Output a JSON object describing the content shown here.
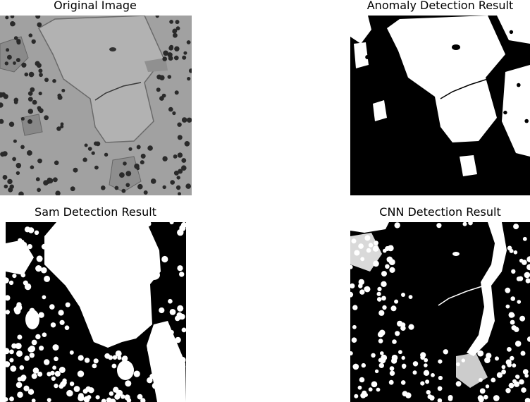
{
  "panels": [
    {
      "title": "Original Image",
      "kind": "grayscale-micrograph"
    },
    {
      "title": "Anomaly Detection Result",
      "kind": "binary-mask"
    },
    {
      "title": "Sam Detection Result",
      "kind": "binary-mask"
    },
    {
      "title": "CNN Detection Result",
      "kind": "binary-mask"
    }
  ],
  "colors": {
    "background": "#ffffff",
    "mask_black": "#000000",
    "mask_white": "#ffffff",
    "micrograph_gray": "#9a9a9a"
  }
}
